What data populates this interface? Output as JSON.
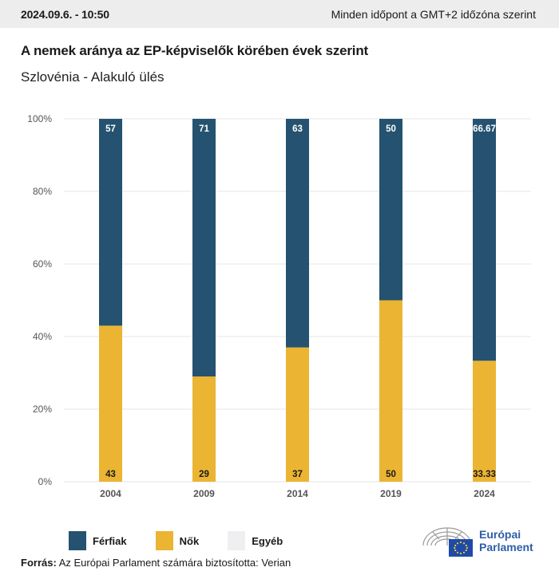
{
  "header": {
    "timestamp": "2024.09.6. - 10:50",
    "timezone_note": "Minden időpont a GMT+2 időzóna szerint"
  },
  "title": "A nemek aránya az EP-képviselők körében évek szerint",
  "subtitle": "Szlovénia - Alakuló ülés",
  "colors": {
    "men": "#255270",
    "women": "#ebb432",
    "other": "#efeff1",
    "grid": "#e4e4e4"
  },
  "chart_data": {
    "type": "bar",
    "stacked": true,
    "categories": [
      "2004",
      "2009",
      "2014",
      "2019",
      "2024"
    ],
    "series": [
      {
        "name": "Nők",
        "values": [
          43,
          29,
          37,
          50,
          33.33
        ],
        "labels": [
          "43",
          "29",
          "37",
          "50",
          "33.33"
        ]
      },
      {
        "name": "Férfiak",
        "values": [
          57,
          71,
          63,
          50,
          66.67
        ],
        "labels": [
          "57",
          "71",
          "63",
          "50",
          "66.67"
        ]
      }
    ],
    "ylim": [
      0,
      100
    ],
    "yticks": [
      "0%",
      "20%",
      "40%",
      "60%",
      "80%",
      "100%"
    ],
    "grid": true
  },
  "legend": [
    {
      "label": "Férfiak",
      "color": "#255270"
    },
    {
      "label": "Nők",
      "color": "#ebb432"
    },
    {
      "label": "Egyéb",
      "color": "#efeff1"
    }
  ],
  "source": {
    "label": "Forrás:",
    "text": "Az Európai Parlament számára biztosította: Verian"
  },
  "logo": {
    "line1": "Európai",
    "line2": "Parlament"
  }
}
